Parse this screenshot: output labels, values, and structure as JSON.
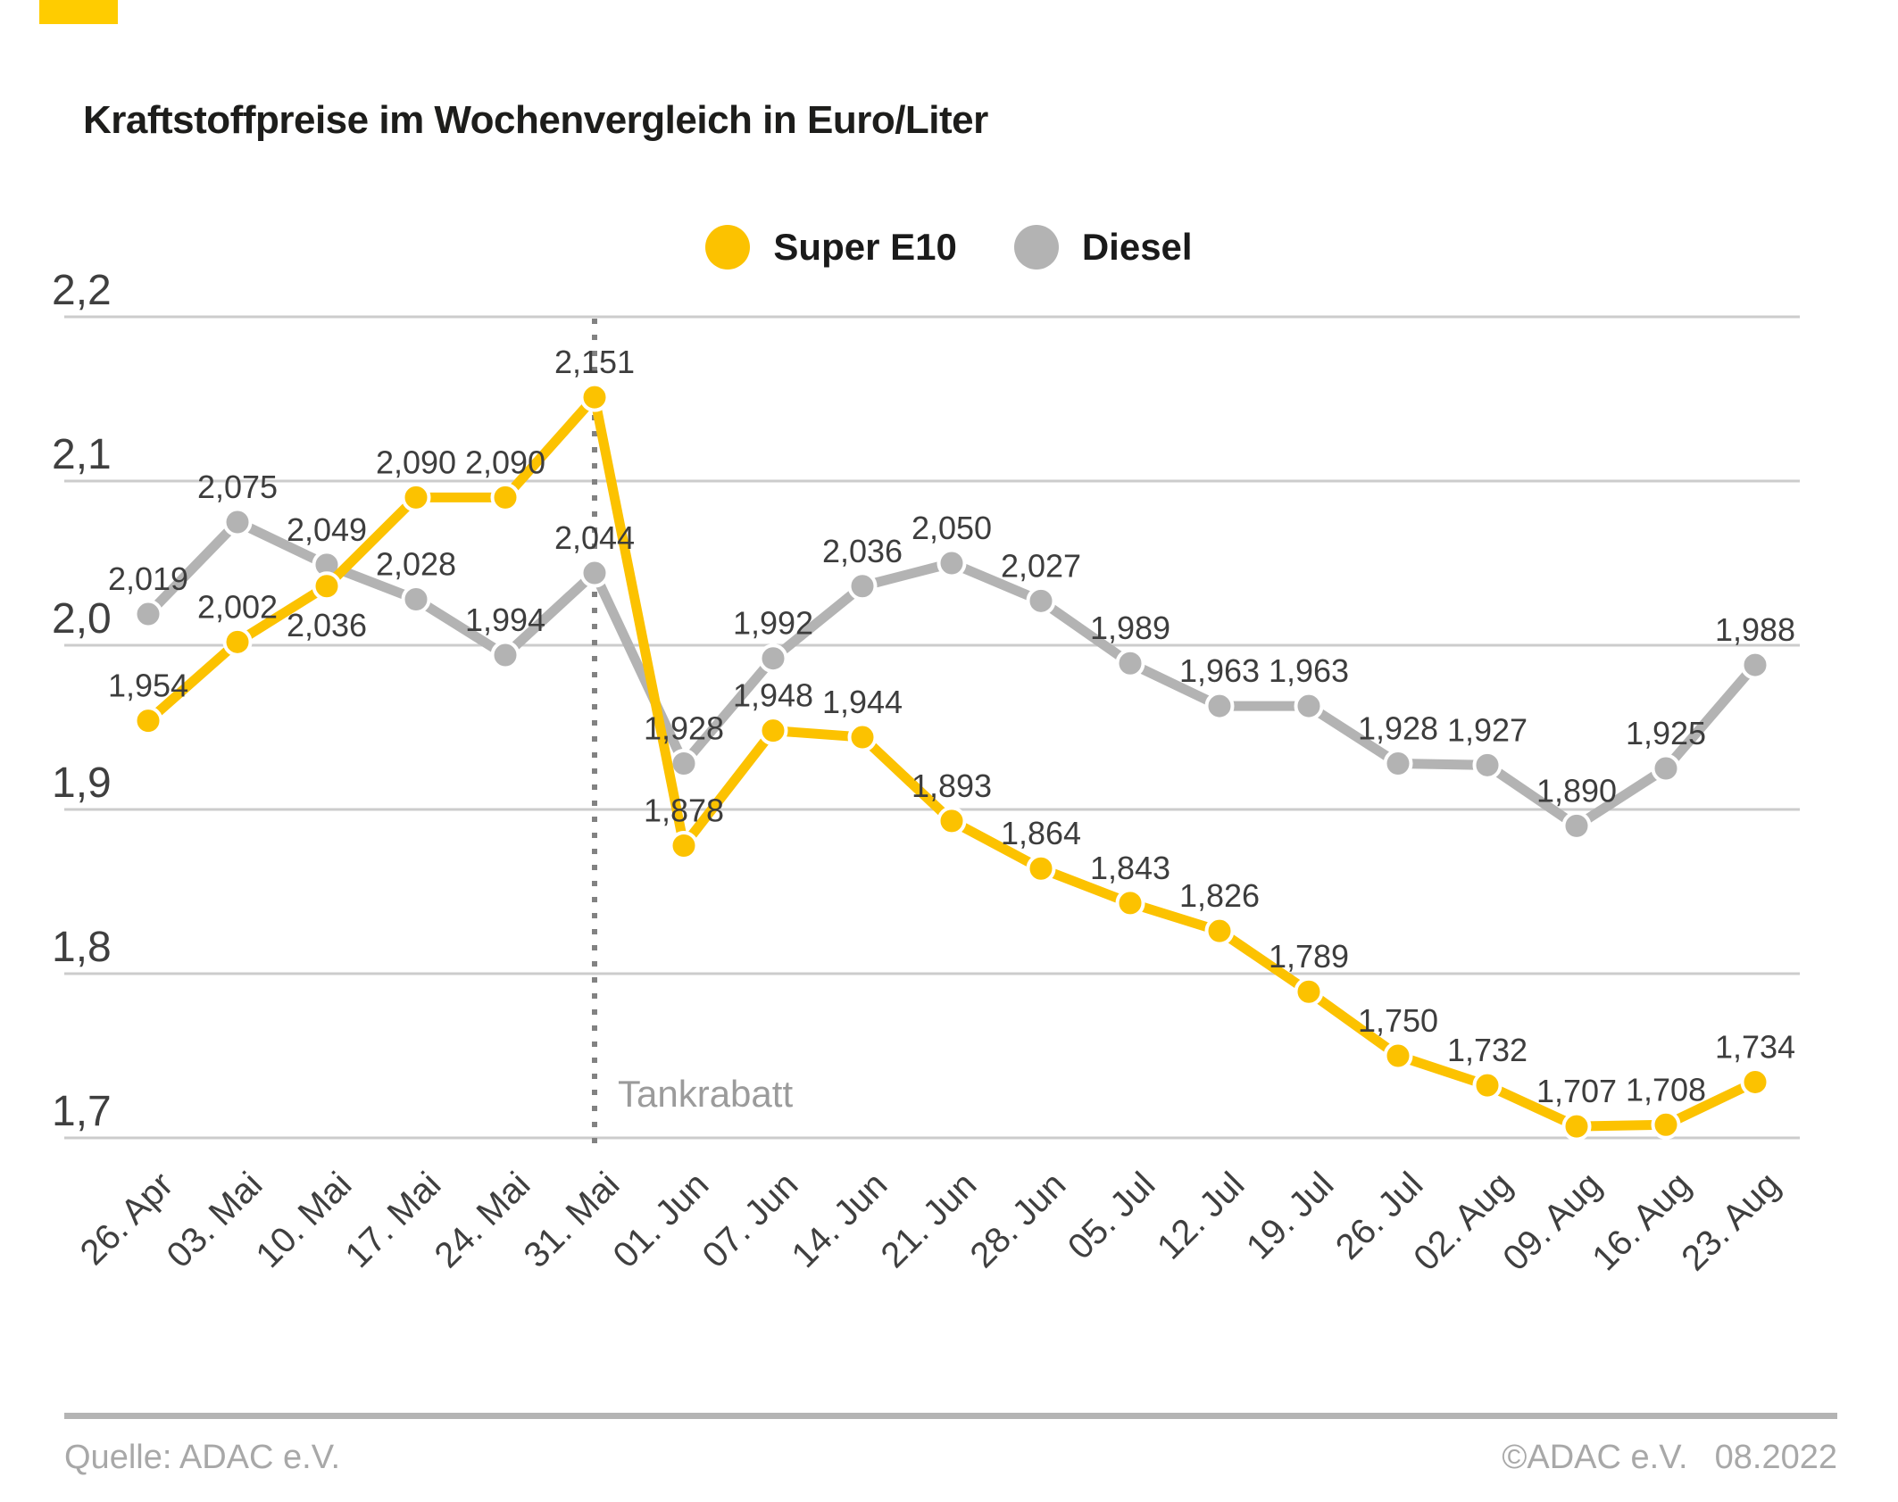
{
  "brand_color": "#FFCC00",
  "title": "Kraftstoffpreise im Wochenvergleich in Euro/Liter",
  "legend": [
    {
      "label": "Super E10",
      "color": "#FCC200"
    },
    {
      "label": "Diesel",
      "color": "#B3B3B3"
    }
  ],
  "chart_data": {
    "type": "line",
    "title": "Kraftstoffpreise im Wochenvergleich in Euro/Liter",
    "x": [
      "26. Apr",
      "03. Mai",
      "10. Mai",
      "17. Mai",
      "24. Mai",
      "31. Mai",
      "01. Jun",
      "07. Jun",
      "14. Jun",
      "21. Jun",
      "28. Jun",
      "05. Jul",
      "12. Jul",
      "19. Jul",
      "26. Jul",
      "02. Aug",
      "09. Aug",
      "16. Aug",
      "23. Aug"
    ],
    "series": [
      {
        "name": "Super E10",
        "color": "#FCC200",
        "values": [
          1.954,
          2.002,
          2.036,
          2.09,
          2.09,
          2.151,
          1.878,
          1.948,
          1.944,
          1.893,
          1.864,
          1.843,
          1.826,
          1.789,
          1.75,
          1.732,
          1.707,
          1.708,
          1.734
        ],
        "labels": [
          "1,954",
          "2,002",
          "2,036",
          "2,090",
          "2,090",
          "2,151",
          "1,878",
          "1,948",
          "1,944",
          "1,893",
          "1,864",
          "1,843",
          "1,826",
          "1,789",
          "1,750",
          "1,732",
          "1,707",
          "1,708",
          "1,734"
        ],
        "label_below_indices": [
          2
        ]
      },
      {
        "name": "Diesel",
        "color": "#B3B3B3",
        "values": [
          2.019,
          2.075,
          2.049,
          2.028,
          1.994,
          2.044,
          1.928,
          1.992,
          2.036,
          2.05,
          2.027,
          1.989,
          1.963,
          1.963,
          1.928,
          1.927,
          1.89,
          1.925,
          1.988
        ],
        "labels": [
          "2,019",
          "2,075",
          "2,049",
          "2,028",
          "1,994",
          "2,044",
          "1,928",
          "1,992",
          "2,036",
          "2,050",
          "2,027",
          "1,989",
          "1,963",
          "1,963",
          "1,928",
          "1,927",
          "1,890",
          "1,925",
          "1,988"
        ],
        "label_below_indices": []
      }
    ],
    "ylim": [
      1.7,
      2.2
    ],
    "yticks": [
      {
        "value": 2.2,
        "label": "2,2"
      },
      {
        "value": 2.1,
        "label": "2,1"
      },
      {
        "value": 2.0,
        "label": "2,0"
      },
      {
        "value": 1.9,
        "label": "1,9"
      },
      {
        "value": 1.8,
        "label": "1,8"
      },
      {
        "value": 1.7,
        "label": "1,7"
      }
    ],
    "grid": true,
    "legend_position": "top-center",
    "annotation": {
      "text": "Tankrabatt",
      "x_label": "31. Mai",
      "x_index": 5
    }
  },
  "footer": {
    "source": "Quelle: ADAC e.V.",
    "copyright": "©ADAC e.V.",
    "date": "08.2022"
  }
}
